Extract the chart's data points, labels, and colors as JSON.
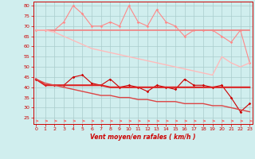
{
  "x": [
    0,
    1,
    2,
    3,
    4,
    5,
    6,
    7,
    8,
    9,
    10,
    11,
    12,
    13,
    14,
    15,
    16,
    17,
    18,
    19,
    20,
    21,
    22,
    23
  ],
  "line1": [
    68,
    68,
    68,
    72,
    80,
    76,
    70,
    70,
    72,
    70,
    80,
    72,
    70,
    78,
    72,
    70,
    65,
    68,
    68,
    68,
    65,
    62,
    68,
    52
  ],
  "line2": [
    68,
    68,
    68,
    68,
    68,
    68,
    68,
    68,
    68,
    68,
    68,
    68,
    68,
    68,
    68,
    68,
    68,
    68,
    68,
    68,
    68,
    68,
    68,
    68
  ],
  "line3": [
    68,
    68,
    67,
    65,
    63,
    61,
    59,
    58,
    57,
    56,
    55,
    54,
    53,
    52,
    51,
    50,
    49,
    48,
    47,
    46,
    55,
    52,
    50,
    52
  ],
  "line4": [
    44,
    41,
    41,
    41,
    45,
    46,
    42,
    41,
    44,
    40,
    41,
    40,
    38,
    41,
    40,
    39,
    44,
    41,
    41,
    40,
    41,
    35,
    28,
    32
  ],
  "line5": [
    44,
    41,
    41,
    41,
    41,
    41,
    41,
    41,
    40,
    40,
    40,
    40,
    40,
    40,
    40,
    40,
    40,
    40,
    40,
    40,
    40,
    40,
    40,
    40
  ],
  "line6": [
    44,
    42,
    41,
    40,
    39,
    38,
    37,
    36,
    36,
    35,
    35,
    34,
    34,
    33,
    33,
    33,
    32,
    32,
    32,
    31,
    31,
    30,
    29,
    28
  ],
  "bg_color": "#d0eeee",
  "grid_color": "#aacccc",
  "line1_color": "#ff8888",
  "line2_color": "#ee8888",
  "line3_color": "#ffbbbb",
  "line4_color": "#cc0000",
  "line5_color": "#dd2222",
  "line6_color": "#dd4444",
  "arrow_color": "#ff6666",
  "xlabel": "Vent moyen/en rafales ( km/h )",
  "ylim": [
    22,
    82
  ],
  "xlim": [
    -0.3,
    23.3
  ],
  "yticks": [
    25,
    30,
    35,
    40,
    45,
    50,
    55,
    60,
    65,
    70,
    75,
    80
  ],
  "xticks": [
    0,
    1,
    2,
    3,
    4,
    5,
    6,
    7,
    8,
    9,
    10,
    11,
    12,
    13,
    14,
    15,
    16,
    17,
    18,
    19,
    20,
    21,
    22,
    23
  ]
}
